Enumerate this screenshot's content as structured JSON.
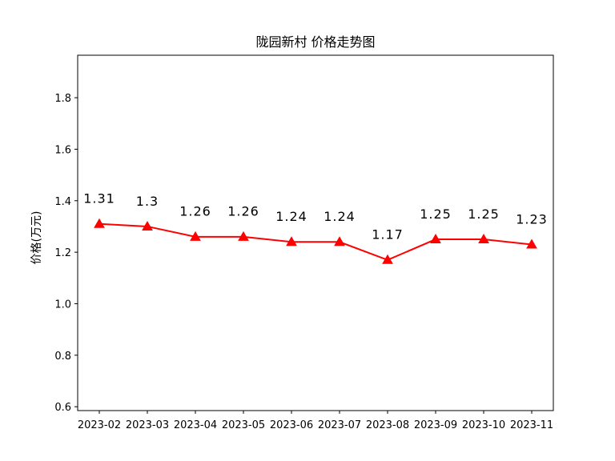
{
  "chart_data": {
    "type": "line",
    "title": "陇园新村 价格走势图",
    "xlabel": "",
    "ylabel": "价格(万元)",
    "categories": [
      "2023-02",
      "2023-03",
      "2023-04",
      "2023-05",
      "2023-06",
      "2023-07",
      "2023-08",
      "2023-09",
      "2023-10",
      "2023-11"
    ],
    "values": [
      1.31,
      1.3,
      1.26,
      1.26,
      1.24,
      1.24,
      1.17,
      1.25,
      1.25,
      1.23
    ],
    "data_labels": [
      "1.31",
      "1.3",
      "1.26",
      "1.26",
      "1.24",
      "1.24",
      "1.17",
      "1.25",
      "1.25",
      "1.23"
    ],
    "yticks": [
      "0.6",
      "0.8",
      "1.0",
      "1.2",
      "1.4",
      "1.6",
      "1.8"
    ],
    "ylim": [
      0.585,
      1.965
    ],
    "grid": false,
    "marker": "triangle",
    "color": "#ff0000"
  }
}
